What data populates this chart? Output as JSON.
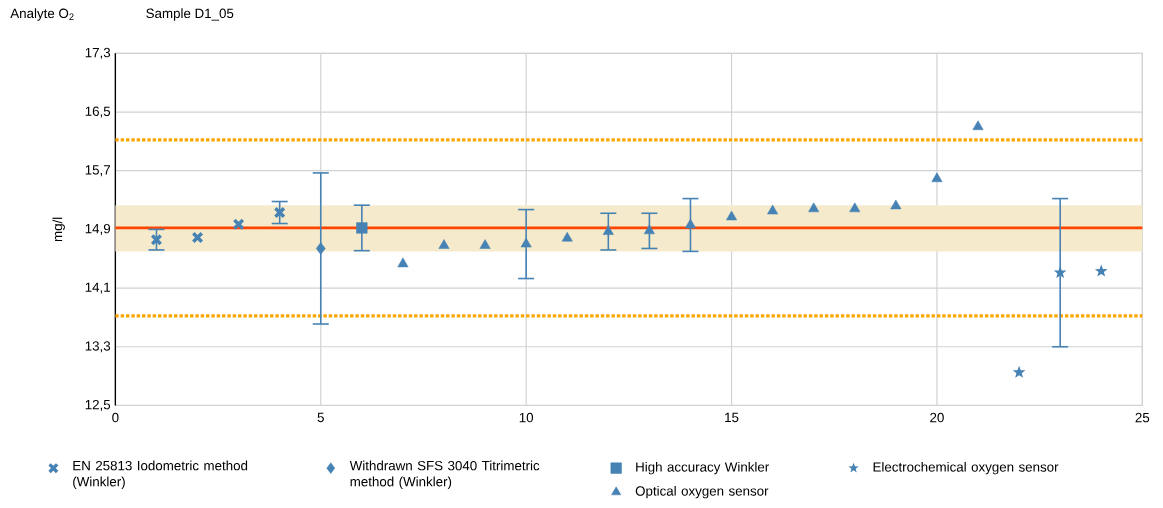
{
  "chart_data": {
    "type": "scatter",
    "title": "Analyte O$_{2}$",
    "subtitle": "Sample D1_05",
    "ylabel": "mg/l",
    "xlim": [
      0,
      25
    ],
    "xticks": [
      0,
      5,
      10,
      15,
      20,
      25
    ],
    "ylim": [
      12.5,
      17.3
    ],
    "yticks": [
      {
        "value": 12.5,
        "label": "12,5"
      },
      {
        "value": 13.3,
        "label": "13,3"
      },
      {
        "value": 14.1,
        "label": "14,1"
      },
      {
        "value": 14.9,
        "label": "14,9"
      },
      {
        "value": 15.7,
        "label": "15,7"
      },
      {
        "value": 16.5,
        "label": "16,5"
      },
      {
        "value": 17.3,
        "label": "17,3"
      }
    ],
    "grid": true,
    "legend": "bottom",
    "series": [
      {
        "name": "EN 25813 Iodometric method (Winkler)",
        "color": "#4682b4",
        "marker": "cross",
        "x": [
          1,
          2,
          3,
          4
        ],
        "values": [
          14.76,
          14.79,
          14.97,
          15.13
        ],
        "errors": [
          0.14,
          null,
          null,
          0.15
        ]
      },
      {
        "name": "Withdrawn SFS 3040 Titrimetric method (Winkler)",
        "color": "#4682b4",
        "marker": "diamond",
        "x": [
          5
        ],
        "values": [
          14.64
        ],
        "errors": [
          1.03
        ]
      },
      {
        "name": "High accuracy Winkler",
        "color": "#4682b4",
        "marker": "square",
        "x": [
          6
        ],
        "values": [
          14.92
        ],
        "errors": [
          0.31
        ]
      },
      {
        "name": "Optical oxygen sensor",
        "color": "#4682b4",
        "marker": "triangle",
        "x": [
          7,
          8,
          9,
          10,
          11,
          12,
          13,
          14,
          15,
          16,
          17,
          18,
          19,
          20,
          21
        ],
        "values": [
          14.43,
          14.68,
          14.68,
          14.7,
          14.78,
          14.87,
          14.88,
          14.96,
          15.07,
          15.15,
          15.18,
          15.18,
          15.22,
          15.59,
          16.3
        ],
        "errors": [
          null,
          null,
          null,
          0.47,
          null,
          0.25,
          0.24,
          0.36,
          null,
          null,
          null,
          null,
          null,
          null,
          null
        ]
      },
      {
        "name": "Electrochemical oxygen sensor",
        "color": "#4682b4",
        "marker": "star",
        "x": [
          22,
          23,
          24
        ],
        "values": [
          12.95,
          14.31,
          14.33
        ],
        "errors": [
          null,
          1.01,
          null
        ]
      }
    ],
    "ref_lines": [
      {
        "axis": "y",
        "value": 14.92,
        "color": "#ff4500",
        "line_style": "solid"
      },
      {
        "axis": "y",
        "value": 16.12,
        "color": "#ffa500",
        "line_style": "dotted"
      },
      {
        "axis": "y",
        "value": 13.72,
        "color": "#ffa500",
        "line_style": "dotted"
      }
    ],
    "bands": [
      {
        "axis": "y",
        "from": 14.6,
        "to": 15.23,
        "color": "#f5ebcc"
      }
    ]
  }
}
